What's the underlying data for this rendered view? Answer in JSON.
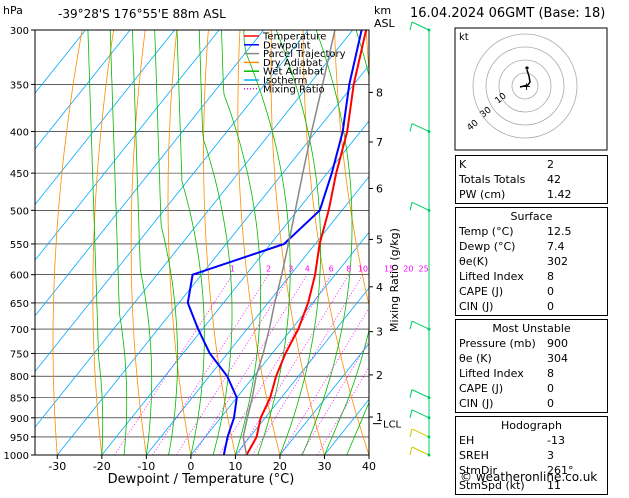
{
  "header": {
    "hpa_unit": "hPa",
    "location": "-39°28'S  176°55'E  88m  ASL",
    "km_unit_1": "km",
    "km_unit_2": "ASL",
    "datetime": "16.04.2024  06GMT  (Base: 18)"
  },
  "chart_data": {
    "type": "line",
    "xlabel": "Dewpoint / Temperature (°C)",
    "ylabel": "hPa",
    "mixing_ratio_label": "Mixing Ratio (g/kg)",
    "x_ticks": [
      -30,
      -20,
      -10,
      0,
      10,
      20,
      30,
      40
    ],
    "xlim": [
      -35,
      40
    ],
    "pressure_levels": [
      300,
      350,
      400,
      450,
      500,
      550,
      600,
      650,
      700,
      750,
      800,
      850,
      900,
      950,
      1000
    ],
    "ylim": [
      1000,
      300
    ],
    "altitude_ticks_km": [
      {
        "label": "8",
        "p": 358
      },
      {
        "label": "7",
        "p": 412
      },
      {
        "label": "6",
        "p": 470
      },
      {
        "label": "5",
        "p": 543
      },
      {
        "label": "4",
        "p": 621
      },
      {
        "label": "3",
        "p": 705
      },
      {
        "label": "2",
        "p": 797
      },
      {
        "label": "1",
        "p": 898
      }
    ],
    "lcl": {
      "label": "LCL",
      "p": 915
    },
    "mixing_ratio_labels": [
      "1",
      "2",
      "3",
      "4",
      "6",
      "8",
      "10",
      "15",
      "20",
      "25"
    ],
    "legend": [
      {
        "name": "Temperature",
        "color": "#ff0000"
      },
      {
        "name": "Dewpoint",
        "color": "#0000ff"
      },
      {
        "name": "Parcel Trajectory",
        "color": "#888888"
      },
      {
        "name": "Dry Adiabat",
        "color": "#ff8c00"
      },
      {
        "name": "Wet Adiabat",
        "color": "#00bb00"
      },
      {
        "name": "Isotherm",
        "color": "#00aaff"
      },
      {
        "name": "Mixing Ratio",
        "color": "#ff00ff"
      }
    ],
    "series": [
      {
        "name": "Temperature",
        "points": [
          [
            12.5,
            1000
          ],
          [
            11.5,
            950
          ],
          [
            9,
            900
          ],
          [
            7.5,
            850
          ],
          [
            5,
            800
          ],
          [
            3,
            750
          ],
          [
            1.5,
            700
          ],
          [
            -1,
            650
          ],
          [
            -4.5,
            600
          ],
          [
            -9,
            550
          ],
          [
            -13,
            500
          ],
          [
            -18,
            450
          ],
          [
            -23,
            400
          ],
          [
            -30,
            350
          ],
          [
            -37,
            300
          ]
        ]
      },
      {
        "name": "Dewpoint",
        "points": [
          [
            7.4,
            1000
          ],
          [
            5,
            950
          ],
          [
            3,
            900
          ],
          [
            0,
            850
          ],
          [
            -6,
            800
          ],
          [
            -14,
            750
          ],
          [
            -21,
            700
          ],
          [
            -28,
            650
          ],
          [
            -32,
            600
          ],
          [
            -17,
            550
          ],
          [
            -15,
            500
          ],
          [
            -19,
            450
          ],
          [
            -24,
            400
          ],
          [
            -31,
            350
          ],
          [
            -38,
            300
          ]
        ]
      },
      {
        "name": "Parcel Trajectory",
        "points": [
          [
            12.5,
            1000
          ],
          [
            8.5,
            950
          ],
          [
            6,
            900
          ],
          [
            3.5,
            850
          ],
          [
            0.5,
            800
          ],
          [
            -2,
            750
          ],
          [
            -5,
            700
          ],
          [
            -8.5,
            650
          ],
          [
            -12,
            600
          ],
          [
            -16,
            550
          ],
          [
            -20.5,
            500
          ],
          [
            -25.5,
            450
          ],
          [
            -31,
            400
          ],
          [
            -37,
            350
          ],
          [
            -44,
            300
          ]
        ]
      }
    ],
    "wind_barbs_p": [
      300,
      400,
      500,
      700,
      850,
      900,
      950,
      1000
    ]
  },
  "hodograph": {
    "unit": "kt",
    "ring_labels": [
      "40",
      "30",
      "10"
    ]
  },
  "indices": {
    "k_label": "K",
    "k": "2",
    "tt_label": "Totals Totals",
    "tt": "42",
    "pw_label": "PW (cm)",
    "pw": "1.42"
  },
  "surface": {
    "title": "Surface",
    "temp_label": "Temp (°C)",
    "temp": "12.5",
    "dewp_label": "Dewp (°C)",
    "dewp": "7.4",
    "theta_label": "θe(K)",
    "theta": "302",
    "li_label": "Lifted Index",
    "li": "8",
    "cape_label": "CAPE (J)",
    "cape": "0",
    "cin_label": "CIN (J)",
    "cin": "0"
  },
  "most_unstable": {
    "title": "Most Unstable",
    "pres_label": "Pressure (mb)",
    "pres": "900",
    "theta_label": "θe (K)",
    "theta": "304",
    "li_label": "Lifted Index",
    "li": "8",
    "cape_label": "CAPE (J)",
    "cape": "0",
    "cin_label": "CIN (J)",
    "cin": "0"
  },
  "hodo_table": {
    "title": "Hodograph",
    "eh_label": "EH",
    "eh": "-13",
    "sreh_label": "SREH",
    "sreh": "3",
    "stmdir_label": "StmDir",
    "stmdir": "261°",
    "stmspd_label": "StmSpd (kt)",
    "stmspd": "11"
  },
  "footer": {
    "copyright": "© weatheronline.co.uk"
  }
}
